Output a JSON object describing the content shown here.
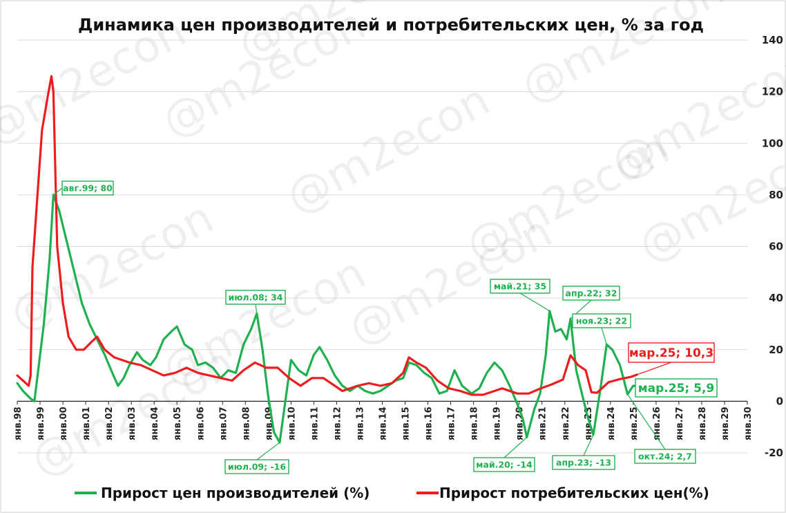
{
  "chart_data": {
    "type": "line",
    "title": "Динамика цен производителей и потребительских цен, % за год",
    "xlabel": "",
    "ylabel": "",
    "ylim": [
      -20,
      140
    ],
    "y_ticks": [
      -20,
      0,
      20,
      40,
      60,
      80,
      100,
      120,
      140
    ],
    "y_axis_side": "right",
    "x_range": [
      "1998-01",
      "2030-01"
    ],
    "x_tick_labels": [
      "янв.98",
      "янв.99",
      "янв.00",
      "янв.01",
      "янв.02",
      "янв.03",
      "янв.04",
      "янв.05",
      "янв.06",
      "янв.07",
      "янв.08",
      "янв.09",
      "янв.10",
      "янв.11",
      "янв.12",
      "янв.13",
      "янв.14",
      "янв.15",
      "янв.16",
      "янв.17",
      "янв.18",
      "янв.19",
      "янв.20",
      "янв.21",
      "янв.22",
      "янв.23",
      "янв.24",
      "янв.25",
      "янв.26",
      "янв.27",
      "янв.28",
      "янв.29",
      "янв.30"
    ],
    "grid": true,
    "legend_position": "bottom",
    "series": [
      {
        "name": "Прирост цен производителей (%)",
        "color": "#1fb14f",
        "points": [
          [
            "1998-01",
            7
          ],
          [
            "1998-04",
            4
          ],
          [
            "1998-08",
            1
          ],
          [
            "1998-10",
            0
          ],
          [
            "1998-12",
            12
          ],
          [
            "1999-03",
            30
          ],
          [
            "1999-06",
            55
          ],
          [
            "1999-08",
            80
          ],
          [
            "1999-11",
            74
          ],
          [
            "2000-03",
            62
          ],
          [
            "2000-07",
            50
          ],
          [
            "2000-11",
            38
          ],
          [
            "2001-03",
            30
          ],
          [
            "2001-07",
            24
          ],
          [
            "2001-11",
            18
          ],
          [
            "2002-03",
            11
          ],
          [
            "2002-06",
            6
          ],
          [
            "2002-09",
            9
          ],
          [
            "2002-12",
            14
          ],
          [
            "2003-04",
            19
          ],
          [
            "2003-07",
            16
          ],
          [
            "2003-11",
            14
          ],
          [
            "2004-02",
            17
          ],
          [
            "2004-06",
            24
          ],
          [
            "2004-10",
            27
          ],
          [
            "2005-01",
            29
          ],
          [
            "2005-05",
            22
          ],
          [
            "2005-09",
            20
          ],
          [
            "2005-12",
            14
          ],
          [
            "2006-04",
            15
          ],
          [
            "2006-08",
            13
          ],
          [
            "2006-12",
            9
          ],
          [
            "2007-04",
            12
          ],
          [
            "2007-08",
            11
          ],
          [
            "2007-12",
            22
          ],
          [
            "2008-04",
            28
          ],
          [
            "2008-07",
            34
          ],
          [
            "2008-10",
            20
          ],
          [
            "2009-01",
            2
          ],
          [
            "2009-04",
            -12
          ],
          [
            "2009-07",
            -16
          ],
          [
            "2009-10",
            0
          ],
          [
            "2010-01",
            16
          ],
          [
            "2010-05",
            12
          ],
          [
            "2010-09",
            10
          ],
          [
            "2011-01",
            18
          ],
          [
            "2011-04",
            21
          ],
          [
            "2011-08",
            16
          ],
          [
            "2011-12",
            10
          ],
          [
            "2012-04",
            6
          ],
          [
            "2012-08",
            4
          ],
          [
            "2012-12",
            6
          ],
          [
            "2013-04",
            4
          ],
          [
            "2013-08",
            3
          ],
          [
            "2013-12",
            4
          ],
          [
            "2014-04",
            6
          ],
          [
            "2014-08",
            8
          ],
          [
            "2014-12",
            9
          ],
          [
            "2015-03",
            15
          ],
          [
            "2015-07",
            14
          ],
          [
            "2015-11",
            11
          ],
          [
            "2016-03",
            9
          ],
          [
            "2016-07",
            3
          ],
          [
            "2016-11",
            4
          ],
          [
            "2017-03",
            12
          ],
          [
            "2017-07",
            6
          ],
          [
            "2017-12",
            3
          ],
          [
            "2018-04",
            5
          ],
          [
            "2018-08",
            11
          ],
          [
            "2018-12",
            15
          ],
          [
            "2019-04",
            12
          ],
          [
            "2019-08",
            6
          ],
          [
            "2019-12",
            -1
          ],
          [
            "2020-03",
            -7
          ],
          [
            "2020-05",
            -14
          ],
          [
            "2020-09",
            -3
          ],
          [
            "2020-12",
            3
          ],
          [
            "2021-03",
            18
          ],
          [
            "2021-05",
            35
          ],
          [
            "2021-08",
            27
          ],
          [
            "2021-11",
            28
          ],
          [
            "2022-02",
            24
          ],
          [
            "2022-04",
            32
          ],
          [
            "2022-07",
            12
          ],
          [
            "2022-10",
            3
          ],
          [
            "2023-01",
            -6
          ],
          [
            "2023-04",
            -13
          ],
          [
            "2023-08",
            6
          ],
          [
            "2023-11",
            22
          ],
          [
            "2024-02",
            20
          ],
          [
            "2024-06",
            14
          ],
          [
            "2024-10",
            2.7
          ],
          [
            "2025-01",
            6
          ],
          [
            "2025-03",
            5.9
          ]
        ],
        "annotations": [
          {
            "label": "авг.99; 80"
          },
          {
            "label": "июл.08; 34"
          },
          {
            "label": "июл.09; -16"
          },
          {
            "label": "май.20; -14"
          },
          {
            "label": "май.21; 35"
          },
          {
            "label": "апр.22; 32"
          },
          {
            "label": "апр.23; -13"
          },
          {
            "label": "ноя.23; 22"
          },
          {
            "label": "окт.24; 2,7"
          },
          {
            "label": "мар.25; 5,9"
          }
        ]
      },
      {
        "name": "Прирост потребительских цен(%)",
        "color": "#ee1c1c",
        "points": [
          [
            "1998-01",
            10
          ],
          [
            "1998-04",
            8
          ],
          [
            "1998-07",
            6
          ],
          [
            "1998-08",
            10
          ],
          [
            "1998-09",
            52
          ],
          [
            "1998-12",
            84
          ],
          [
            "1999-02",
            105
          ],
          [
            "1999-05",
            118
          ],
          [
            "1999-07",
            126
          ],
          [
            "1999-08",
            120
          ],
          [
            "1999-10",
            60
          ],
          [
            "2000-01",
            38
          ],
          [
            "2000-04",
            25
          ],
          [
            "2000-08",
            20
          ],
          [
            "2000-12",
            20
          ],
          [
            "2001-04",
            23
          ],
          [
            "2001-07",
            25
          ],
          [
            "2001-11",
            20
          ],
          [
            "2002-04",
            17
          ],
          [
            "2002-12",
            15
          ],
          [
            "2003-06",
            14
          ],
          [
            "2003-12",
            12
          ],
          [
            "2004-06",
            10
          ],
          [
            "2004-12",
            11
          ],
          [
            "2005-06",
            13
          ],
          [
            "2005-12",
            11
          ],
          [
            "2006-06",
            10
          ],
          [
            "2006-12",
            9
          ],
          [
            "2007-06",
            8
          ],
          [
            "2007-12",
            12
          ],
          [
            "2008-06",
            15
          ],
          [
            "2008-12",
            13
          ],
          [
            "2009-06",
            13
          ],
          [
            "2009-12",
            9
          ],
          [
            "2010-06",
            6
          ],
          [
            "2010-12",
            9
          ],
          [
            "2011-06",
            9
          ],
          [
            "2011-12",
            6
          ],
          [
            "2012-04",
            4
          ],
          [
            "2012-12",
            6
          ],
          [
            "2013-06",
            7
          ],
          [
            "2013-12",
            6
          ],
          [
            "2014-06",
            7
          ],
          [
            "2014-12",
            11
          ],
          [
            "2015-03",
            17
          ],
          [
            "2015-07",
            15
          ],
          [
            "2015-12",
            13
          ],
          [
            "2016-06",
            8
          ],
          [
            "2016-12",
            5
          ],
          [
            "2017-06",
            4
          ],
          [
            "2017-12",
            2.5
          ],
          [
            "2018-06",
            2.5
          ],
          [
            "2018-12",
            4
          ],
          [
            "2019-04",
            5
          ],
          [
            "2019-12",
            3
          ],
          [
            "2020-06",
            3
          ],
          [
            "2020-12",
            4.9
          ],
          [
            "2021-06",
            6.5
          ],
          [
            "2021-12",
            8.4
          ],
          [
            "2022-04",
            17.8
          ],
          [
            "2022-08",
            14
          ],
          [
            "2022-12",
            12
          ],
          [
            "2023-03",
            3.5
          ],
          [
            "2023-06",
            3.3
          ],
          [
            "2023-12",
            7.4
          ],
          [
            "2024-06",
            8.6
          ],
          [
            "2024-12",
            9.5
          ],
          [
            "2025-03",
            10.3
          ]
        ],
        "annotations": [
          {
            "label": "мар.25; 10,3"
          }
        ]
      }
    ],
    "watermark": "@m2econ"
  }
}
